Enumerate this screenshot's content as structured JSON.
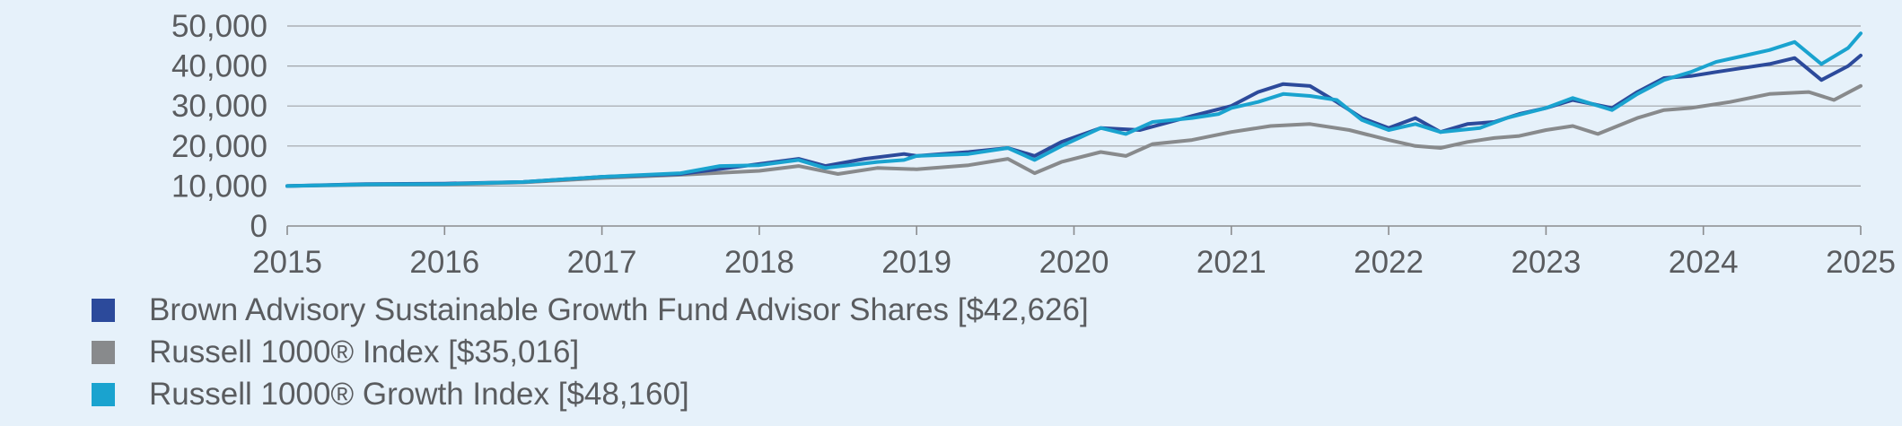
{
  "chart_data": {
    "type": "line",
    "title": "",
    "xlabel": "",
    "ylabel": "",
    "ylim": [
      0,
      50000
    ],
    "yticks": [
      0,
      10000,
      20000,
      30000,
      40000,
      50000
    ],
    "ytick_labels": [
      "0",
      "10,000",
      "20,000",
      "30,000",
      "40,000",
      "50,000"
    ],
    "xlim": [
      2015,
      2025
    ],
    "xticks": [
      "2015",
      "2016",
      "2017",
      "2018",
      "2019",
      "2020",
      "2021",
      "2022",
      "2023",
      "2024",
      "2025"
    ],
    "grid": "horizontal",
    "legend_position": "bottom",
    "series": [
      {
        "name": "Brown Advisory Sustainable Growth Fund Advisor Shares [$42,626]",
        "color": "#2c4a9b",
        "points": [
          [
            2015.0,
            10000
          ],
          [
            2015.5,
            10500
          ],
          [
            2016.0,
            10600
          ],
          [
            2016.5,
            11000
          ],
          [
            2017.0,
            12300
          ],
          [
            2017.5,
            13000
          ],
          [
            2018.0,
            15500
          ],
          [
            2018.25,
            16800
          ],
          [
            2018.42,
            15000
          ],
          [
            2018.67,
            16800
          ],
          [
            2018.92,
            18000
          ],
          [
            2019.0,
            17500
          ],
          [
            2019.33,
            18500
          ],
          [
            2019.58,
            19500
          ],
          [
            2019.75,
            17500
          ],
          [
            2019.92,
            21000
          ],
          [
            2020.17,
            24500
          ],
          [
            2020.42,
            24000
          ],
          [
            2020.75,
            27500
          ],
          [
            2021.0,
            30000
          ],
          [
            2021.17,
            33500
          ],
          [
            2021.33,
            35500
          ],
          [
            2021.5,
            35000
          ],
          [
            2021.67,
            31000
          ],
          [
            2021.83,
            27000
          ],
          [
            2022.0,
            24500
          ],
          [
            2022.17,
            27000
          ],
          [
            2022.33,
            23500
          ],
          [
            2022.5,
            25500
          ],
          [
            2022.67,
            26000
          ],
          [
            2022.83,
            28000
          ],
          [
            2023.0,
            29500
          ],
          [
            2023.17,
            31500
          ],
          [
            2023.42,
            29500
          ],
          [
            2023.58,
            33500
          ],
          [
            2023.75,
            37000
          ],
          [
            2023.92,
            37500
          ],
          [
            2024.08,
            38500
          ],
          [
            2024.25,
            39500
          ],
          [
            2024.42,
            40500
          ],
          [
            2024.58,
            42000
          ],
          [
            2024.75,
            36500
          ],
          [
            2024.92,
            40000
          ],
          [
            2025.0,
            42626
          ]
        ]
      },
      {
        "name": "Russell 1000® Index [$35,016]",
        "color": "#888a8c",
        "points": [
          [
            2015.0,
            10000
          ],
          [
            2015.5,
            10300
          ],
          [
            2016.0,
            10400
          ],
          [
            2016.5,
            10900
          ],
          [
            2017.0,
            12000
          ],
          [
            2017.5,
            12800
          ],
          [
            2018.0,
            13800
          ],
          [
            2018.25,
            15000
          ],
          [
            2018.5,
            13000
          ],
          [
            2018.75,
            14500
          ],
          [
            2019.0,
            14200
          ],
          [
            2019.33,
            15200
          ],
          [
            2019.58,
            16800
          ],
          [
            2019.75,
            13200
          ],
          [
            2019.92,
            16000
          ],
          [
            2020.17,
            18500
          ],
          [
            2020.33,
            17500
          ],
          [
            2020.5,
            20500
          ],
          [
            2020.75,
            21500
          ],
          [
            2021.0,
            23500
          ],
          [
            2021.25,
            25000
          ],
          [
            2021.5,
            25500
          ],
          [
            2021.75,
            24000
          ],
          [
            2022.0,
            21500
          ],
          [
            2022.17,
            20000
          ],
          [
            2022.33,
            19500
          ],
          [
            2022.5,
            21000
          ],
          [
            2022.67,
            22000
          ],
          [
            2022.83,
            22500
          ],
          [
            2023.0,
            24000
          ],
          [
            2023.17,
            25000
          ],
          [
            2023.33,
            23000
          ],
          [
            2023.58,
            27000
          ],
          [
            2023.75,
            29000
          ],
          [
            2023.92,
            29500
          ],
          [
            2024.17,
            31000
          ],
          [
            2024.42,
            33000
          ],
          [
            2024.67,
            33500
          ],
          [
            2024.83,
            31500
          ],
          [
            2025.0,
            35016
          ]
        ]
      },
      {
        "name": "Russell 1000® Growth Index [$48,160]",
        "color": "#1aa3cf",
        "points": [
          [
            2015.0,
            10000
          ],
          [
            2015.5,
            10400
          ],
          [
            2016.0,
            10500
          ],
          [
            2016.5,
            11000
          ],
          [
            2017.0,
            12300
          ],
          [
            2017.5,
            13200
          ],
          [
            2017.75,
            15000
          ],
          [
            2018.0,
            15200
          ],
          [
            2018.25,
            16500
          ],
          [
            2018.42,
            14500
          ],
          [
            2018.75,
            16000
          ],
          [
            2018.92,
            16500
          ],
          [
            2019.0,
            17500
          ],
          [
            2019.33,
            18000
          ],
          [
            2019.58,
            19500
          ],
          [
            2019.75,
            16500
          ],
          [
            2019.92,
            20000
          ],
          [
            2020.17,
            24500
          ],
          [
            2020.33,
            23000
          ],
          [
            2020.5,
            26000
          ],
          [
            2020.75,
            27000
          ],
          [
            2020.92,
            28000
          ],
          [
            2021.0,
            29500
          ],
          [
            2021.17,
            31000
          ],
          [
            2021.33,
            33000
          ],
          [
            2021.5,
            32500
          ],
          [
            2021.67,
            31500
          ],
          [
            2021.83,
            26500
          ],
          [
            2022.0,
            24000
          ],
          [
            2022.17,
            25500
          ],
          [
            2022.33,
            23500
          ],
          [
            2022.58,
            24500
          ],
          [
            2022.75,
            27000
          ],
          [
            2023.0,
            29500
          ],
          [
            2023.17,
            32000
          ],
          [
            2023.42,
            29000
          ],
          [
            2023.58,
            33000
          ],
          [
            2023.75,
            36500
          ],
          [
            2023.92,
            38500
          ],
          [
            2024.08,
            41000
          ],
          [
            2024.25,
            42500
          ],
          [
            2024.42,
            44000
          ],
          [
            2024.58,
            46000
          ],
          [
            2024.75,
            40500
          ],
          [
            2024.92,
            44500
          ],
          [
            2025.0,
            48160
          ]
        ]
      }
    ]
  }
}
